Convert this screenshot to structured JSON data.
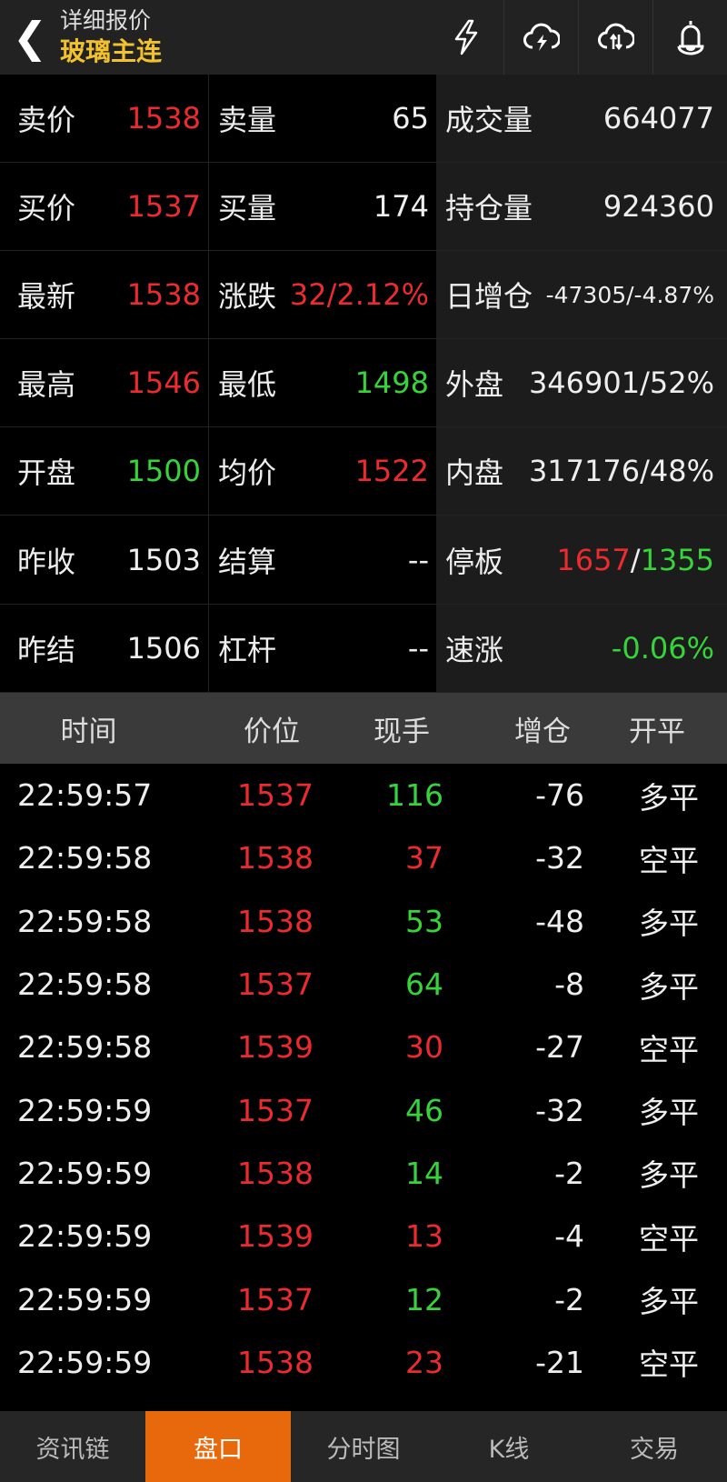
{
  "header": {
    "subtitle": "详细报价",
    "title": "玻璃主连",
    "icons": [
      "lightning-icon",
      "cloud-lightning-icon",
      "cloud-sync-icon",
      "bell-icon"
    ]
  },
  "colors": {
    "red": "#ec2b2f",
    "green": "#36d43a",
    "accent": "#e8690b",
    "title": "#f2c12e"
  },
  "quote": {
    "left": [
      {
        "l1": "卖价",
        "v1": "1538",
        "c1": "r",
        "l2": "卖量",
        "v2": "65",
        "c2": "w"
      },
      {
        "l1": "买价",
        "v1": "1537",
        "c1": "r",
        "l2": "买量",
        "v2": "174",
        "c2": "w"
      },
      {
        "l1": "最新",
        "v1": "1538",
        "c1": "r",
        "l2": "涨跌",
        "v2": "32/2.12%",
        "c2": "r"
      },
      {
        "l1": "最高",
        "v1": "1546",
        "c1": "r",
        "l2": "最低",
        "v2": "1498",
        "c2": "g"
      },
      {
        "l1": "开盘",
        "v1": "1500",
        "c1": "g",
        "l2": "均价",
        "v2": "1522",
        "c2": "r"
      },
      {
        "l1": "昨收",
        "v1": "1503",
        "c1": "w",
        "l2": "结算",
        "v2": "--",
        "c2": "w"
      },
      {
        "l1": "昨结",
        "v1": "1506",
        "c1": "w",
        "l2": "杠杆",
        "v2": "--",
        "c2": "w"
      }
    ],
    "right": [
      {
        "l": "成交量",
        "v": "664077",
        "c": "w"
      },
      {
        "l": "持仓量",
        "v": "924360",
        "c": "w"
      },
      {
        "l": "日增仓",
        "v": "-47305/-4.87%",
        "c": "w small"
      },
      {
        "l": "外盘",
        "v": "346901/52%",
        "c": "w"
      },
      {
        "l": "内盘",
        "v": "317176/48%",
        "c": "w"
      },
      {
        "l": "停板",
        "v_up": "1657",
        "sep": "/",
        "v_down": "1355"
      },
      {
        "l": "速涨",
        "v": "-0.06%",
        "c": "g"
      }
    ]
  },
  "ticks": {
    "headers": [
      "时间",
      "价位",
      "现手",
      "增仓",
      "开平"
    ],
    "rows": [
      [
        "22:59:57",
        "1537",
        "116",
        "g",
        "-76",
        "多平"
      ],
      [
        "22:59:58",
        "1538",
        "37",
        "r",
        "-32",
        "空平"
      ],
      [
        "22:59:58",
        "1538",
        "53",
        "g",
        "-48",
        "多平"
      ],
      [
        "22:59:58",
        "1537",
        "64",
        "g",
        "-8",
        "多平"
      ],
      [
        "22:59:58",
        "1539",
        "30",
        "r",
        "-27",
        "空平"
      ],
      [
        "22:59:59",
        "1537",
        "46",
        "g",
        "-32",
        "多平"
      ],
      [
        "22:59:59",
        "1538",
        "14",
        "g",
        "-2",
        "多平"
      ],
      [
        "22:59:59",
        "1539",
        "13",
        "r",
        "-4",
        "空平"
      ],
      [
        "22:59:59",
        "1537",
        "12",
        "g",
        "-2",
        "多平"
      ],
      [
        "22:59:59",
        "1538",
        "23",
        "r",
        "-21",
        "空平"
      ]
    ]
  },
  "nav": {
    "tabs": [
      "资讯链",
      "盘口",
      "分时图",
      "K线",
      "交易"
    ],
    "active": 1
  }
}
